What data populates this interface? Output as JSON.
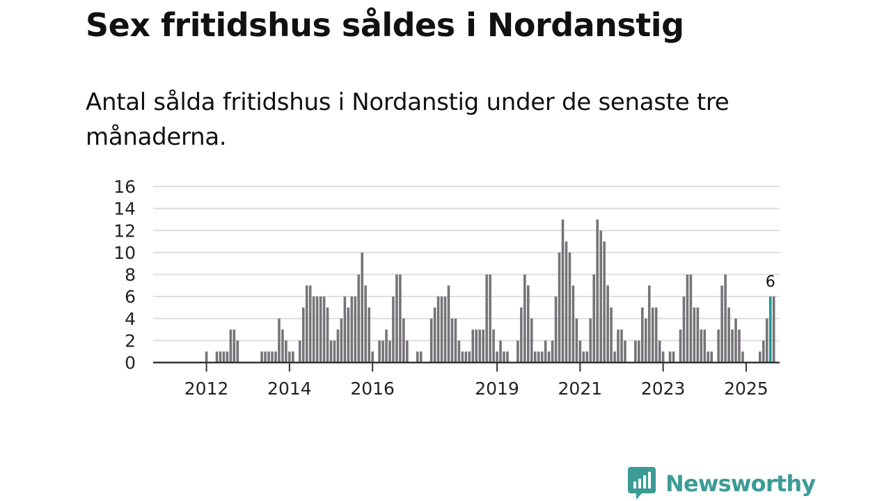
{
  "title": "Sex fritidshus såldes i Nordanstig",
  "subtitle": "Antal sålda fritidshus i Nordanstig under de senaste tre månaderna.",
  "brand": {
    "name": "Newsworthy",
    "color": "#3d9b96"
  },
  "colors": {
    "bar": "#767478",
    "highlight": "#1e9a94",
    "grid": "#dddddd",
    "axis": "#333333"
  },
  "chart_data": {
    "type": "bar",
    "title": "Sex fritidshus såldes i Nordanstig",
    "subtitle": "Antal sålda fritidshus i Nordanstig under de senaste tre månaderna.",
    "xlabel": "",
    "ylabel": "",
    "ylim": [
      0,
      16
    ],
    "yticks": [
      0,
      2,
      4,
      6,
      8,
      10,
      12,
      14,
      16
    ],
    "grid": true,
    "x_start": "2011-06",
    "x_interval": "month",
    "xtick_labels": [
      {
        "label": "2012",
        "index": 7
      },
      {
        "label": "2014",
        "index": 31
      },
      {
        "label": "2016",
        "index": 55
      },
      {
        "label": "2019",
        "index": 91
      },
      {
        "label": "2021",
        "index": 115
      },
      {
        "label": "2023",
        "index": 139
      },
      {
        "label": "2025",
        "index": 163
      }
    ],
    "highlight_index": 170,
    "highlight_label": "6",
    "values": [
      0,
      0,
      0,
      0,
      0,
      0,
      0,
      1,
      0,
      0,
      1,
      1,
      1,
      1,
      3,
      3,
      2,
      0,
      0,
      0,
      0,
      0,
      0,
      1,
      1,
      1,
      1,
      1,
      4,
      3,
      2,
      1,
      1,
      0,
      2,
      5,
      7,
      7,
      6,
      6,
      6,
      6,
      5,
      2,
      2,
      3,
      4,
      6,
      5,
      6,
      6,
      8,
      10,
      7,
      5,
      1,
      0,
      2,
      2,
      3,
      2,
      6,
      8,
      8,
      4,
      2,
      0,
      0,
      1,
      1,
      0,
      0,
      4,
      5,
      6,
      6,
      6,
      7,
      4,
      4,
      2,
      1,
      1,
      1,
      3,
      3,
      3,
      3,
      8,
      8,
      3,
      1,
      2,
      1,
      1,
      0,
      0,
      2,
      5,
      8,
      7,
      4,
      1,
      1,
      1,
      2,
      1,
      2,
      6,
      10,
      13,
      11,
      10,
      7,
      4,
      2,
      1,
      1,
      4,
      8,
      13,
      12,
      11,
      7,
      5,
      1,
      3,
      3,
      2,
      0,
      0,
      2,
      2,
      5,
      4,
      7,
      5,
      5,
      2,
      1,
      0,
      1,
      1,
      0,
      3,
      6,
      8,
      8,
      5,
      5,
      3,
      3,
      1,
      1,
      0,
      3,
      7,
      8,
      5,
      3,
      4,
      3,
      1,
      0,
      0,
      0,
      0,
      1,
      2,
      4,
      6,
      6
    ]
  }
}
